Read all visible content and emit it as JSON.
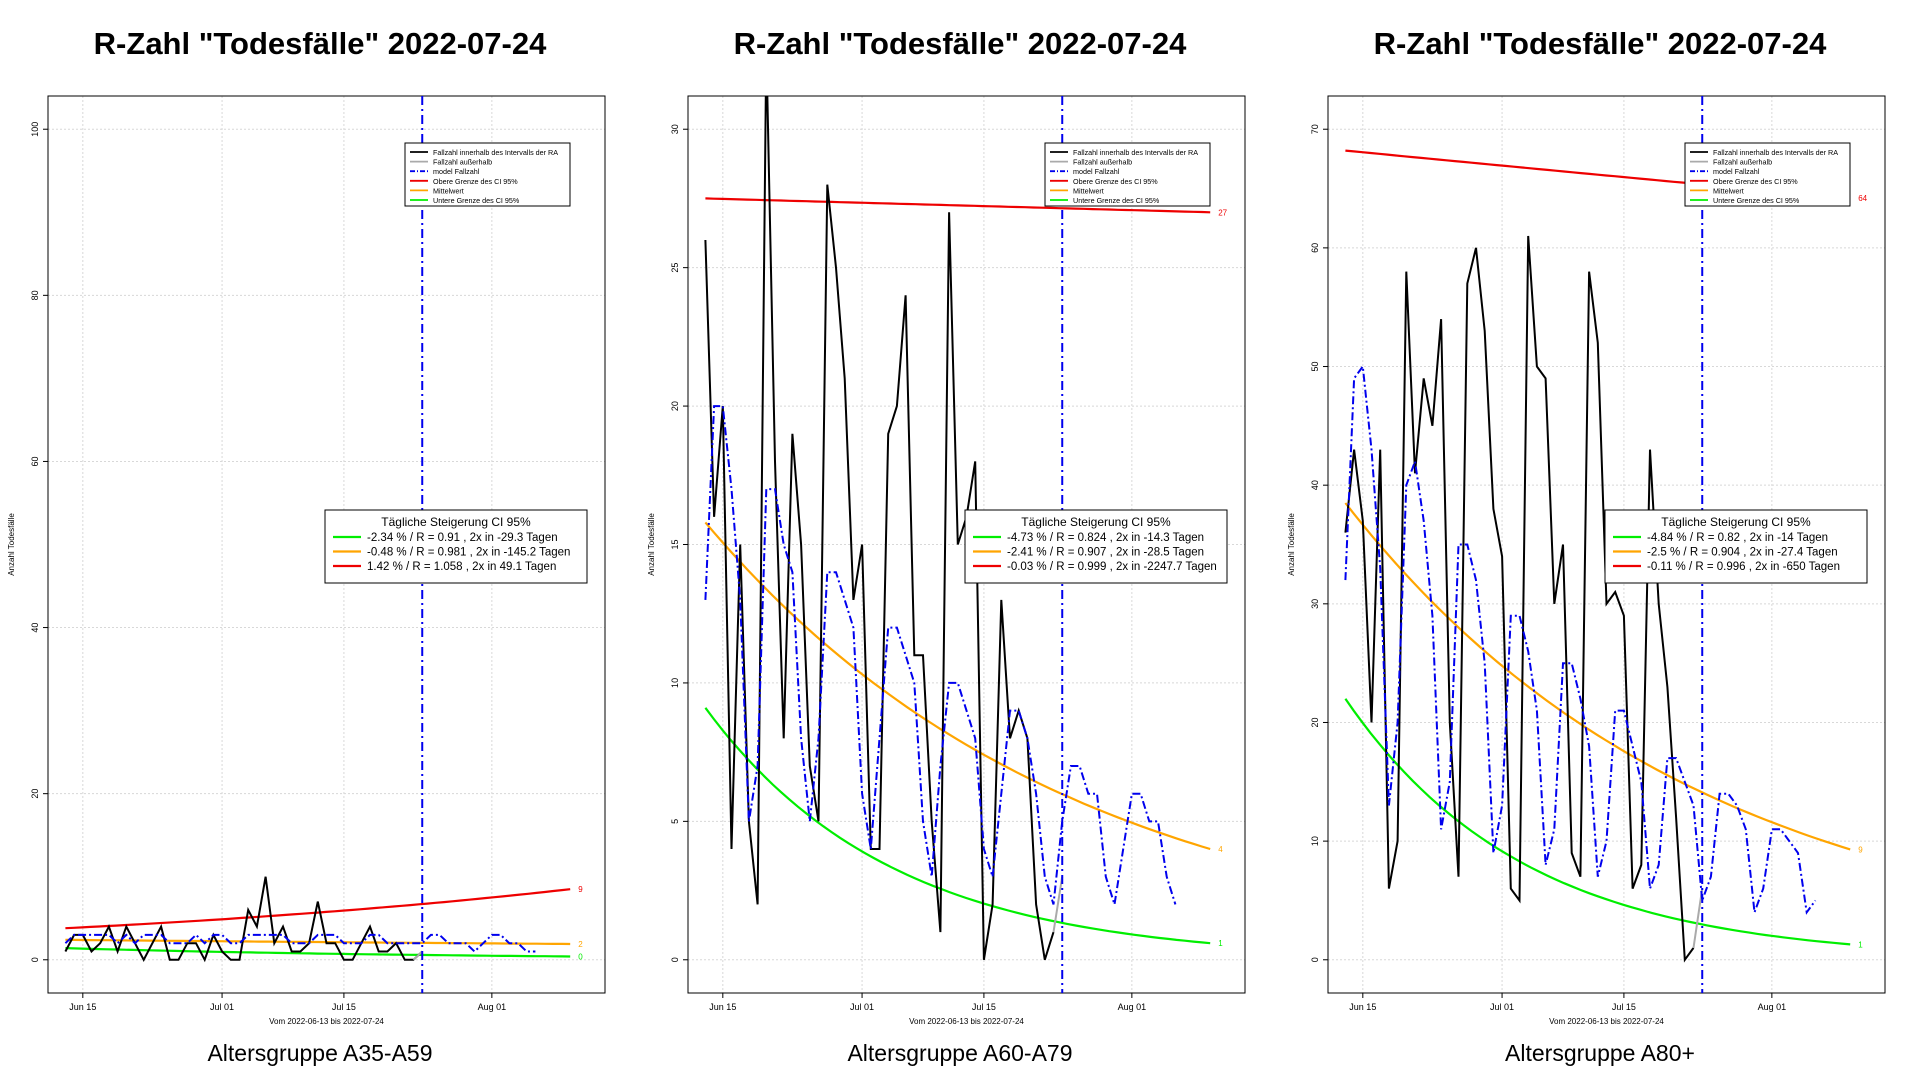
{
  "legend_entries": [
    {
      "label": "Fallzahl innerhalb des Intervalls der RA",
      "color": "#000000",
      "style": "solid"
    },
    {
      "label": "Fallzahl außerhalb",
      "color": "#aaaaaa",
      "style": "solid"
    },
    {
      "label": "model Fallzahl",
      "color": "#0000ee",
      "style": "dashdot"
    },
    {
      "label": "Obere Grenze des CI 95%",
      "color": "#ee0000",
      "style": "solid"
    },
    {
      "label": "Mittelwert",
      "color": "#ffa500",
      "style": "solid"
    },
    {
      "label": "Untere Grenze des CI 95%",
      "color": "#00ee00",
      "style": "solid"
    }
  ],
  "colors": {
    "observed": "#000000",
    "outside": "#aaaaaa",
    "model": "#0000ee",
    "upper": "#ee0000",
    "mean": "#ffa500",
    "lower": "#00ee00",
    "marker": "#0000ee"
  },
  "chart_data": [
    {
      "type": "line",
      "title": "R-Zahl \"Todesfälle\" 2022-07-24",
      "subtitle": "Altersgruppe A35-A59",
      "xlabel": "Vom 2022-06-13 bis 2022-07-24",
      "ylabel": "Anzahl Todesfälle",
      "x_range": [
        "2022-06-11",
        "2022-08-14"
      ],
      "ylim": [
        -4,
        104
      ],
      "y_ticks": [
        0,
        20,
        40,
        60,
        80,
        100
      ],
      "x_ticks": [
        {
          "date": "2022-06-15",
          "label": "Jun 15"
        },
        {
          "date": "2022-07-01",
          "label": "Jul 01"
        },
        {
          "date": "2022-07-15",
          "label": "Jul 15"
        },
        {
          "date": "2022-08-01",
          "label": "Aug 01"
        }
      ],
      "marker_date": "2022-07-24",
      "grid": true,
      "legend_position": "top-right",
      "observed": {
        "start": "2022-06-13",
        "values": [
          1,
          3,
          3,
          1,
          2,
          4,
          1,
          4,
          2,
          0,
          2,
          4,
          0,
          0,
          2,
          2,
          0,
          3,
          1,
          0,
          0,
          6,
          4,
          10,
          2,
          4,
          1,
          1,
          2,
          7,
          2,
          2,
          0,
          0,
          2,
          4,
          1,
          1,
          2,
          0,
          0,
          1
        ]
      },
      "outside": {
        "start": "2022-07-23",
        "values": [
          0,
          1
        ]
      },
      "model": {
        "start": "2022-06-13",
        "values": [
          2,
          3,
          3,
          3,
          3,
          3,
          2,
          3,
          2,
          3,
          3,
          3,
          2,
          2,
          2,
          3,
          2,
          3,
          3,
          2,
          2,
          3,
          3,
          3,
          3,
          3,
          2,
          2,
          2,
          3,
          3,
          3,
          2,
          2,
          2,
          3,
          3,
          2,
          2,
          2,
          2,
          2,
          3,
          3,
          2,
          2,
          2,
          1,
          2,
          3,
          3,
          2,
          2,
          1,
          1
        ]
      },
      "fits": {
        "upper": {
          "start": 3.8,
          "end": 8.5,
          "label": "9"
        },
        "mean": {
          "start": 2.4,
          "end": 1.9,
          "label": "2"
        },
        "lower": {
          "start": 1.4,
          "end": 0.4,
          "label": "0"
        },
        "end_date": "2022-08-10"
      },
      "growth_box": {
        "title": "Tägliche Steigerung CI 95%",
        "rows": [
          {
            "series": "lower",
            "text": "-2.34 % / R = 0.91 , 2x in -29.3 Tagen"
          },
          {
            "series": "mean",
            "text": "-0.48 % / R = 0.981 , 2x in -145.2 Tagen"
          },
          {
            "series": "upper",
            "text": "1.42 % / R = 1.058 , 2x in 49.1 Tagen"
          }
        ]
      }
    },
    {
      "type": "line",
      "title": "R-Zahl \"Todesfälle\" 2022-07-24",
      "subtitle": "Altersgruppe A60-A79",
      "xlabel": "Vom 2022-06-13 bis 2022-07-24",
      "ylabel": "Anzahl Todesfälle",
      "x_range": [
        "2022-06-11",
        "2022-08-14"
      ],
      "ylim": [
        -1.2,
        31.2
      ],
      "y_ticks": [
        0,
        5,
        10,
        15,
        20,
        25,
        30
      ],
      "x_ticks": [
        {
          "date": "2022-06-15",
          "label": "Jun 15"
        },
        {
          "date": "2022-07-01",
          "label": "Jul 01"
        },
        {
          "date": "2022-07-15",
          "label": "Jul 15"
        },
        {
          "date": "2022-08-01",
          "label": "Aug 01"
        }
      ],
      "marker_date": "2022-07-24",
      "grid": true,
      "legend_position": "top-right",
      "observed": {
        "start": "2022-06-13",
        "values": [
          26,
          16,
          20,
          4,
          15,
          5,
          2,
          33,
          18,
          8,
          19,
          15,
          7,
          5,
          28,
          25,
          21,
          13,
          15,
          4,
          4,
          19,
          20,
          24,
          11,
          11,
          5,
          1,
          27,
          15,
          16,
          18,
          0,
          2,
          13,
          8,
          9,
          8,
          2,
          0,
          1
        ]
      },
      "outside": {
        "start": "2022-07-23",
        "values": [
          1,
          3
        ]
      },
      "model": {
        "start": "2022-06-13",
        "values": [
          13,
          20,
          20,
          17,
          13,
          5,
          7,
          17,
          17,
          15,
          14,
          8,
          5,
          8,
          14,
          14,
          13,
          12,
          6,
          4,
          8,
          12,
          12,
          11,
          10,
          5,
          3,
          7,
          10,
          10,
          9,
          8,
          4,
          3,
          6,
          9,
          9,
          8,
          6,
          3,
          2,
          5,
          7,
          7,
          6,
          6,
          3,
          2,
          4,
          6,
          6,
          5,
          5,
          3,
          2
        ]
      },
      "fits": {
        "upper": {
          "start": 27.5,
          "end": 27.0,
          "label": "27"
        },
        "mean": {
          "start": 15.8,
          "end": 4.0,
          "label": "4"
        },
        "lower": {
          "start": 9.1,
          "end": 0.6,
          "label": "1"
        },
        "end_date": "2022-08-10"
      },
      "growth_box": {
        "title": "Tägliche Steigerung CI 95%",
        "rows": [
          {
            "series": "lower",
            "text": "-4.73 % / R = 0.824 , 2x in -14.3 Tagen"
          },
          {
            "series": "mean",
            "text": "-2.41 % / R = 0.907 , 2x in -28.5 Tagen"
          },
          {
            "series": "upper",
            "text": "-0.03 % / R = 0.999 , 2x in -2247.7 Tagen"
          }
        ]
      }
    },
    {
      "type": "line",
      "title": "R-Zahl \"Todesfälle\" 2022-07-24",
      "subtitle": "Altersgruppe A80+",
      "xlabel": "Vom 2022-06-13 bis 2022-07-24",
      "ylabel": "Anzahl Todesfälle",
      "x_range": [
        "2022-06-11",
        "2022-08-14"
      ],
      "ylim": [
        -2.8,
        72.8
      ],
      "y_ticks": [
        0,
        10,
        20,
        30,
        40,
        50,
        60,
        70
      ],
      "x_ticks": [
        {
          "date": "2022-06-15",
          "label": "Jun 15"
        },
        {
          "date": "2022-07-01",
          "label": "Jul 01"
        },
        {
          "date": "2022-07-15",
          "label": "Jul 15"
        },
        {
          "date": "2022-08-01",
          "label": "Aug 01"
        }
      ],
      "marker_date": "2022-07-24",
      "grid": true,
      "legend_position": "top-right",
      "observed": {
        "start": "2022-06-13",
        "values": [
          36,
          43,
          37,
          20,
          43,
          6,
          10,
          58,
          41,
          49,
          45,
          54,
          20,
          7,
          57,
          60,
          53,
          38,
          34,
          6,
          5,
          61,
          50,
          49,
          30,
          35,
          9,
          7,
          58,
          52,
          30,
          31,
          29,
          6,
          8,
          43,
          30,
          23,
          12,
          0,
          1
        ]
      },
      "outside": {
        "start": "2022-07-23",
        "values": [
          1,
          6
        ]
      },
      "model": {
        "start": "2022-06-13",
        "values": [
          32,
          49,
          50,
          43,
          33,
          13,
          20,
          40,
          42,
          37,
          29,
          11,
          15,
          35,
          35,
          32,
          25,
          9,
          13,
          29,
          29,
          26,
          21,
          8,
          11,
          25,
          25,
          22,
          18,
          7,
          10,
          21,
          21,
          18,
          15,
          6,
          8,
          17,
          17,
          15,
          13,
          5,
          7,
          14,
          14,
          13,
          11,
          4,
          6,
          11,
          11,
          10,
          9,
          4,
          5
        ]
      },
      "fits": {
        "upper": {
          "start": 68.2,
          "end": 64.2,
          "label": "64"
        },
        "mean": {
          "start": 38.5,
          "end": 9.3,
          "label": "9"
        },
        "lower": {
          "start": 22.0,
          "end": 1.3,
          "label": "1"
        },
        "end_date": "2022-08-10"
      },
      "growth_box": {
        "title": "Tägliche Steigerung CI 95%",
        "rows": [
          {
            "series": "lower",
            "text": "-4.84 % / R = 0.82 , 2x in -14 Tagen"
          },
          {
            "series": "mean",
            "text": "-2.5 % / R = 0.904 , 2x in -27.4 Tagen"
          },
          {
            "series": "upper",
            "text": "-0.11 % / R = 0.996 , 2x in -650 Tagen"
          }
        ]
      }
    }
  ]
}
